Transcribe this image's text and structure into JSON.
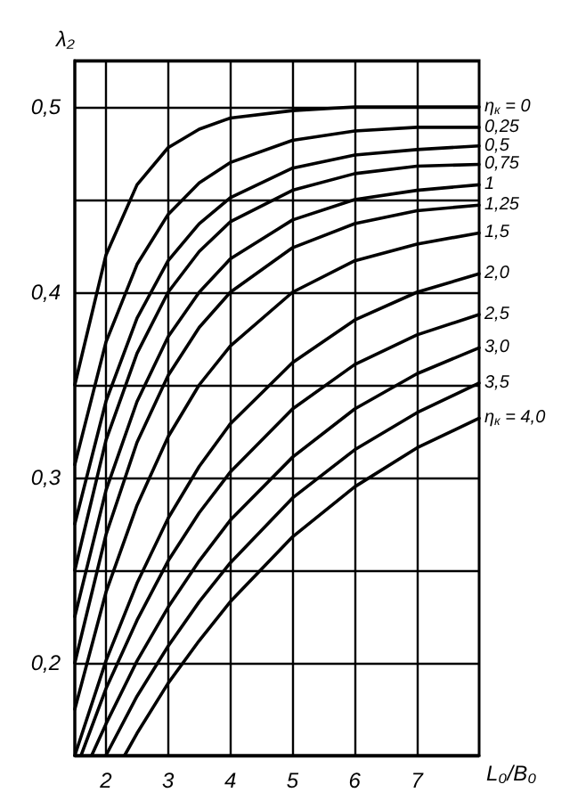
{
  "chart_data": {
    "type": "line",
    "xlabel": "L₀/B₀",
    "ylabel": "λ₂",
    "xlim": [
      1.5,
      8
    ],
    "ylim": [
      0.15,
      0.525
    ],
    "xticks": [
      2,
      3,
      4,
      5,
      6,
      7
    ],
    "yticks": [
      {
        "value": 0.2,
        "label": "0,2"
      },
      {
        "value": 0.25,
        "label": null
      },
      {
        "value": 0.3,
        "label": "0,3"
      },
      {
        "value": 0.35,
        "label": null
      },
      {
        "value": 0.4,
        "label": "0,4"
      },
      {
        "value": 0.45,
        "label": null
      },
      {
        "value": 0.5,
        "label": "0,5"
      }
    ],
    "grid": true,
    "legend": false,
    "marker": "none",
    "line_style": "solid",
    "series": [
      {
        "name": "η$_{к}$ = 0",
        "color": "#000000",
        "x": [
          1.5,
          2,
          2.5,
          3,
          3.5,
          4,
          5,
          6,
          7,
          8
        ],
        "values": [
          0.35,
          0.42,
          0.458,
          0.478,
          0.488,
          0.494,
          0.498,
          0.5,
          0.5,
          0.5
        ]
      },
      {
        "name": "0,25",
        "color": "#000000",
        "x": [
          1.5,
          2,
          2.5,
          3,
          3.5,
          4,
          5,
          6,
          7,
          8
        ],
        "values": [
          0.307,
          0.373,
          0.415,
          0.442,
          0.459,
          0.47,
          0.482,
          0.487,
          0.489,
          0.489
        ]
      },
      {
        "name": "0,5",
        "color": "#000000",
        "x": [
          1.5,
          2,
          2.5,
          3,
          3.5,
          4,
          5,
          6,
          7,
          8
        ],
        "values": [
          0.275,
          0.341,
          0.386,
          0.417,
          0.437,
          0.451,
          0.467,
          0.474,
          0.477,
          0.479
        ]
      },
      {
        "name": "0,75",
        "color": "#000000",
        "x": [
          1.5,
          2,
          2.5,
          3,
          3.5,
          4,
          5,
          6,
          7,
          8
        ],
        "values": [
          0.25,
          0.32,
          0.367,
          0.4,
          0.422,
          0.438,
          0.455,
          0.464,
          0.468,
          0.469
        ]
      },
      {
        "name": "1",
        "color": "#000000",
        "x": [
          1.5,
          2,
          2.5,
          3,
          3.5,
          4,
          5,
          6,
          7,
          8
        ],
        "values": [
          0.225,
          0.293,
          0.341,
          0.376,
          0.4,
          0.418,
          0.439,
          0.45,
          0.455,
          0.458
        ]
      },
      {
        "name": "1,25",
        "color": "#000000",
        "x": [
          1.5,
          2,
          2.5,
          3,
          3.5,
          4,
          5,
          6,
          7,
          8
        ],
        "values": [
          0.2,
          0.269,
          0.319,
          0.355,
          0.381,
          0.4,
          0.424,
          0.437,
          0.444,
          0.447
        ]
      },
      {
        "name": "1,5",
        "color": "#000000",
        "x": [
          1.5,
          2,
          2.5,
          3,
          3.5,
          4,
          5,
          6,
          7,
          8
        ],
        "values": [
          0.175,
          0.238,
          0.285,
          0.322,
          0.35,
          0.371,
          0.4,
          0.417,
          0.426,
          0.432
        ]
      },
      {
        "name": "2,0",
        "color": "#000000",
        "x": [
          1.5,
          2,
          2.5,
          3,
          3.5,
          4,
          5,
          6,
          7,
          8
        ],
        "values": [
          0.15,
          0.201,
          0.243,
          0.278,
          0.306,
          0.329,
          0.362,
          0.385,
          0.4,
          0.41
        ]
      },
      {
        "name": "2,5",
        "color": "#000000",
        "x": [
          1.6,
          2,
          2.5,
          3,
          3.5,
          4,
          5,
          6,
          7,
          8
        ],
        "values": [
          0.15,
          0.186,
          0.223,
          0.255,
          0.281,
          0.303,
          0.337,
          0.361,
          0.377,
          0.388
        ]
      },
      {
        "name": "3,0",
        "color": "#000000",
        "x": [
          1.77,
          2,
          2.5,
          3,
          3.5,
          4,
          5,
          6,
          7,
          8
        ],
        "values": [
          0.15,
          0.167,
          0.201,
          0.23,
          0.255,
          0.277,
          0.311,
          0.337,
          0.356,
          0.37
        ]
      },
      {
        "name": "3,5",
        "color": "#000000",
        "x": [
          2,
          2.5,
          3,
          3.5,
          4,
          5,
          6,
          7,
          8
        ],
        "values": [
          0.15,
          0.182,
          0.209,
          0.233,
          0.254,
          0.289,
          0.315,
          0.335,
          0.351
        ]
      },
      {
        "name": "η$_{к}$ = 4,0",
        "color": "#000000",
        "x": [
          2.3,
          2.5,
          3,
          3.5,
          4,
          5,
          6,
          7,
          8
        ],
        "values": [
          0.15,
          0.162,
          0.189,
          0.212,
          0.233,
          0.268,
          0.295,
          0.316,
          0.332
        ]
      }
    ]
  }
}
